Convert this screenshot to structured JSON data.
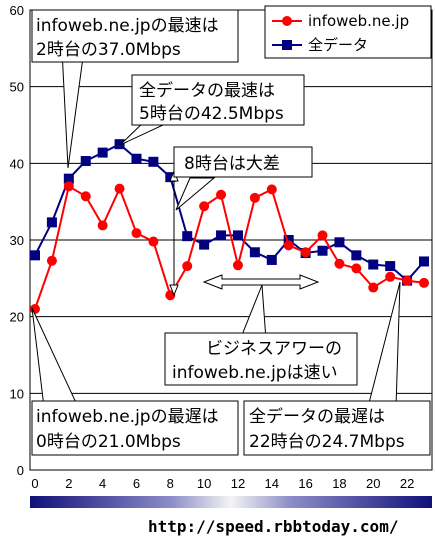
{
  "chart_data": {
    "type": "line",
    "x": [
      0,
      1,
      2,
      3,
      4,
      5,
      6,
      7,
      8,
      9,
      10,
      11,
      12,
      13,
      14,
      15,
      16,
      17,
      18,
      19,
      20,
      21,
      22,
      23
    ],
    "ylim": [
      0,
      60
    ],
    "xlim": [
      0,
      23
    ],
    "y_ticks": [
      "0",
      "10",
      "20",
      "30",
      "40",
      "50",
      "60"
    ],
    "x_ticks": [
      "0",
      "2",
      "4",
      "6",
      "8",
      "10",
      "12",
      "14",
      "16",
      "18",
      "20",
      "22"
    ],
    "series": [
      {
        "name": "infoweb.ne.jp",
        "color": "#ff0000",
        "marker": "circle",
        "values": [
          21.0,
          27.3,
          37.0,
          35.7,
          31.9,
          36.7,
          30.9,
          29.8,
          22.8,
          26.6,
          34.4,
          35.9,
          26.7,
          35.5,
          36.6,
          29.3,
          28.4,
          30.6,
          26.9,
          26.3,
          23.8,
          25.2,
          24.7,
          24.4
        ]
      },
      {
        "name": "全データ",
        "color": "#000080",
        "marker": "square",
        "values": [
          28.0,
          32.3,
          38.0,
          40.3,
          41.4,
          42.5,
          40.6,
          40.2,
          38.2,
          30.5,
          29.4,
          30.6,
          30.6,
          28.4,
          27.4,
          30.0,
          28.3,
          28.6,
          29.7,
          28.0,
          26.8,
          26.6,
          24.7,
          27.2
        ]
      }
    ],
    "grid": true,
    "legend": "top-right",
    "annotations": [
      {
        "id": "infoweb-max",
        "line1": "infoweb.ne.jpの最速は",
        "line2": "2時台の37.0Mbps",
        "x": 2,
        "y": 37.0
      },
      {
        "id": "all-max",
        "line1": "全データの最速は",
        "line2": "5時台の42.5Mbps",
        "x": 5,
        "y": 42.5
      },
      {
        "id": "gap-8",
        "line1": "8時台は大差",
        "line2": "",
        "x": 8,
        "y": 30.5
      },
      {
        "id": "infoweb-fast",
        "line1": "ビジネスアワーの",
        "line2": "infoweb.ne.jpは速い",
        "x": 13,
        "y": 24.5
      },
      {
        "id": "infoweb-min",
        "line1": "infoweb.ne.jpの最遅は",
        "line2": "0時台の21.0Mbps",
        "x": 0,
        "y": 21.0
      },
      {
        "id": "all-min",
        "line1": "全データの最遅は",
        "line2": "22時台の24.7Mbps",
        "x": 22,
        "y": 24.7
      }
    ],
    "source_url": "http://speed.rbbtoday.com/"
  }
}
